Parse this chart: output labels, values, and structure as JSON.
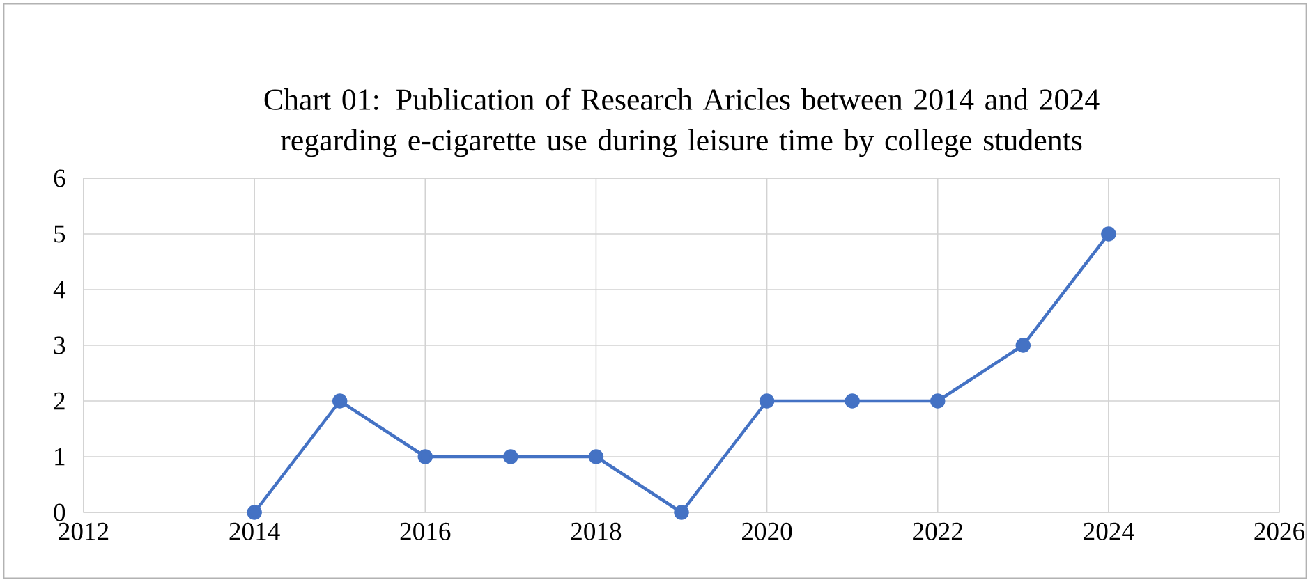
{
  "chart_data": {
    "type": "line",
    "title": "Chart 01: Publication of Research Aricles between 2014 and 2024 regarding e-cigarette use during leisure time by college students",
    "x": [
      2014,
      2015,
      2016,
      2017,
      2018,
      2019,
      2020,
      2021,
      2022,
      2023,
      2024
    ],
    "series": [
      {
        "color": "#4472c4",
        "values": [
          0,
          2,
          1,
          1,
          1,
          0,
          2,
          2,
          2,
          3,
          5
        ]
      }
    ],
    "xlim": [
      2012,
      2026
    ],
    "xticks": [
      2012,
      2014,
      2016,
      2018,
      2020,
      2022,
      2024,
      2026
    ],
    "ylim": [
      0,
      6
    ],
    "yticks": [
      0,
      1,
      2,
      3,
      4,
      5,
      6
    ],
    "grid": true,
    "marker": "circle",
    "line_style": "solid"
  }
}
